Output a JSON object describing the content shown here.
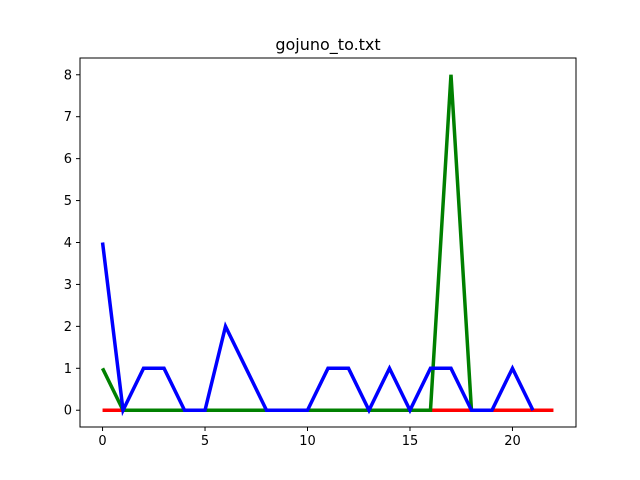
{
  "chart_data": {
    "type": "line",
    "title": "gojuno_to.txt",
    "xlabel": "",
    "ylabel": "",
    "xlim": [
      -1.1,
      23.1
    ],
    "ylim": [
      -0.4,
      8.4
    ],
    "xticks": [
      0,
      5,
      10,
      15,
      20
    ],
    "yticks": [
      0,
      1,
      2,
      3,
      4,
      5,
      6,
      7,
      8
    ],
    "grid": false,
    "series": [
      {
        "color": "#ff0000",
        "x": [
          0,
          1,
          2,
          3,
          4,
          5,
          6,
          7,
          8,
          9,
          10,
          11,
          12,
          13,
          14,
          15,
          16,
          17,
          18,
          19,
          20,
          21,
          22
        ],
        "y": [
          0,
          0,
          0,
          0,
          0,
          0,
          0,
          0,
          0,
          0,
          0,
          0,
          0,
          0,
          0,
          0,
          0,
          0,
          0,
          0,
          0,
          0,
          0
        ]
      },
      {
        "color": "#008000",
        "x": [
          0,
          1,
          2,
          3,
          4,
          5,
          6,
          7,
          8,
          9,
          10,
          11,
          12,
          13,
          14,
          15,
          16,
          17,
          18
        ],
        "y": [
          1,
          0,
          0,
          0,
          0,
          0,
          0,
          0,
          0,
          0,
          0,
          0,
          0,
          0,
          0,
          0,
          0,
          8,
          0
        ]
      },
      {
        "color": "#0000ff",
        "x": [
          0,
          1,
          2,
          3,
          4,
          5,
          6,
          7,
          8,
          9,
          10,
          11,
          12,
          13,
          14,
          15,
          16,
          17,
          18,
          19,
          20,
          21
        ],
        "y": [
          4,
          0,
          1,
          1,
          0,
          0,
          2,
          1,
          0,
          0,
          0,
          1,
          1,
          0,
          1,
          0,
          1,
          1,
          0,
          0,
          1,
          0
        ]
      }
    ]
  }
}
